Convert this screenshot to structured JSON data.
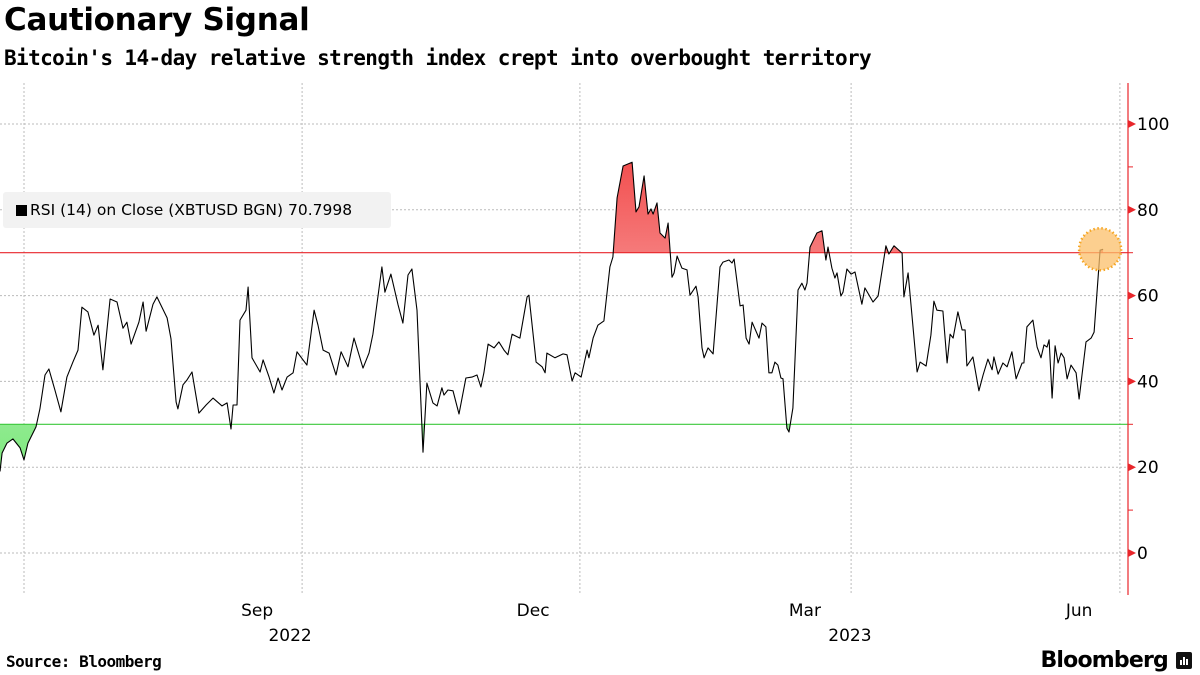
{
  "header": {
    "title": "Cautionary Signal",
    "subtitle": "Bitcoin's 14-day relative strength index crept into overbought territory"
  },
  "legend": {
    "label": "RSI (14)  on Close (XBTUSD BGN) 70.7998"
  },
  "footer": {
    "source": "Source: Bloomberg",
    "brand": "Bloomberg"
  },
  "colors": {
    "line": "#000000",
    "overbought": "#e8262b",
    "oversold": "#3cc83c",
    "axis": "#e8262b",
    "highlight": "#fbbf6a"
  },
  "chart_data": {
    "type": "line",
    "title": "Cautionary Signal",
    "xlabel": "",
    "ylabel": "RSI",
    "x_unit": "days since start of window (late Jun 2022)",
    "ylim": [
      -10,
      110
    ],
    "xlim": [
      0,
      376
    ],
    "yticks": [
      0,
      20,
      40,
      60,
      80,
      100
    ],
    "ytick_labels": [
      "0",
      "20",
      "40",
      "60",
      "80",
      "100"
    ],
    "x_gridlines": [
      8,
      100.7,
      193.3,
      283.7,
      373.3
    ],
    "xtick_labels": [
      {
        "label": "Sep",
        "x": 85.7
      },
      {
        "label": "Dec",
        "x": 177.7
      },
      {
        "label": "Mar",
        "x": 268.3
      },
      {
        "label": "Jun",
        "x": 359.7
      }
    ],
    "year_labels": [
      {
        "label": "2022",
        "x": 96.7
      },
      {
        "label": "2023",
        "x": 283.3
      }
    ],
    "overbought_level": 70,
    "oversold_level": 30,
    "last_value": 70.7998,
    "series": [
      {
        "name": "RSI (14) on Close (XBTUSD BGN)",
        "points": [
          [
            0,
            19
          ],
          [
            0.7,
            23.3
          ],
          [
            2.3,
            25.6
          ],
          [
            4.3,
            26.6
          ],
          [
            6.7,
            24.5
          ],
          [
            8,
            21.7
          ],
          [
            9.3,
            25.6
          ],
          [
            12,
            29.4
          ],
          [
            13.3,
            33.6
          ],
          [
            15,
            41.5
          ],
          [
            16.3,
            42.9
          ],
          [
            18.3,
            38
          ],
          [
            20.3,
            32.9
          ],
          [
            22.3,
            41
          ],
          [
            24.3,
            44.5
          ],
          [
            26,
            47.3
          ],
          [
            27.3,
            57.3
          ],
          [
            29.3,
            56.2
          ],
          [
            31.3,
            50.8
          ],
          [
            32.7,
            53.1
          ],
          [
            34.3,
            42.7
          ],
          [
            36.7,
            59.2
          ],
          [
            39,
            58.5
          ],
          [
            41,
            52.4
          ],
          [
            42.3,
            53.8
          ],
          [
            43.7,
            48.7
          ],
          [
            46.3,
            53.8
          ],
          [
            47.7,
            58.5
          ],
          [
            48.7,
            51.7
          ],
          [
            51,
            58
          ],
          [
            52.3,
            59.7
          ],
          [
            55.7,
            54.8
          ],
          [
            57,
            49.9
          ],
          [
            58.7,
            35.2
          ],
          [
            59.3,
            33.6
          ],
          [
            61,
            39.2
          ],
          [
            62.3,
            40.3
          ],
          [
            64,
            42.2
          ],
          [
            66.3,
            32.6
          ],
          [
            68.7,
            34.5
          ],
          [
            71,
            36.1
          ],
          [
            74,
            34.3
          ],
          [
            75.7,
            35
          ],
          [
            77,
            28.9
          ],
          [
            77.7,
            34.5
          ],
          [
            79,
            34.5
          ],
          [
            80,
            54.3
          ],
          [
            82,
            56.6
          ],
          [
            82.7,
            62
          ],
          [
            84,
            45.5
          ],
          [
            86.7,
            42.2
          ],
          [
            87.7,
            45
          ],
          [
            89.7,
            41
          ],
          [
            91.3,
            37.3
          ],
          [
            92.7,
            40.8
          ],
          [
            94,
            38
          ],
          [
            95.7,
            41
          ],
          [
            97.7,
            42
          ],
          [
            99,
            46.9
          ],
          [
            102.3,
            43.8
          ],
          [
            104.7,
            56.6
          ],
          [
            106,
            53.1
          ],
          [
            107.7,
            47.3
          ],
          [
            109.7,
            46.6
          ],
          [
            112,
            41.5
          ],
          [
            113.7,
            46.9
          ],
          [
            116,
            43.4
          ],
          [
            118,
            50.1
          ],
          [
            121,
            43.1
          ],
          [
            123,
            46.6
          ],
          [
            124.3,
            51
          ],
          [
            127.3,
            66.7
          ],
          [
            128.3,
            60.8
          ],
          [
            130.3,
            65
          ],
          [
            132.7,
            57.8
          ],
          [
            134.3,
            53.6
          ],
          [
            136,
            64.8
          ],
          [
            137.3,
            66.2
          ],
          [
            139,
            56.6
          ],
          [
            141,
            23.5
          ],
          [
            142.3,
            39.6
          ],
          [
            144.3,
            35
          ],
          [
            145.7,
            34.3
          ],
          [
            147.3,
            38.5
          ],
          [
            148,
            36.8
          ],
          [
            149.3,
            38
          ],
          [
            151,
            37.8
          ],
          [
            153,
            32.4
          ],
          [
            155.3,
            40.8
          ],
          [
            157.3,
            41
          ],
          [
            159,
            41.5
          ],
          [
            160.3,
            38.7
          ],
          [
            161.3,
            42
          ],
          [
            162.7,
            48.7
          ],
          [
            164.7,
            47.8
          ],
          [
            166.3,
            49.2
          ],
          [
            168,
            47.3
          ],
          [
            169.3,
            46.2
          ],
          [
            170.7,
            51
          ],
          [
            173.3,
            50.1
          ],
          [
            175.7,
            59.7
          ],
          [
            176.3,
            60.1
          ],
          [
            178.7,
            44.5
          ],
          [
            180.7,
            43.4
          ],
          [
            181.7,
            42
          ],
          [
            182.3,
            46.6
          ],
          [
            185,
            45.5
          ],
          [
            187.7,
            46.4
          ],
          [
            189,
            46.2
          ],
          [
            190.7,
            40.1
          ],
          [
            191.7,
            42
          ],
          [
            193.7,
            41
          ],
          [
            195.7,
            47.3
          ],
          [
            196.3,
            45.5
          ],
          [
            197.7,
            50.1
          ],
          [
            199.3,
            53.1
          ],
          [
            201.3,
            54.1
          ],
          [
            203.3,
            66.7
          ],
          [
            204.3,
            69
          ],
          [
            205.7,
            82.8
          ],
          [
            207.7,
            90.2
          ],
          [
            210.7,
            91.1
          ],
          [
            212,
            79.5
          ],
          [
            213,
            80.7
          ],
          [
            214.7,
            87.9
          ],
          [
            216,
            79
          ],
          [
            217,
            80.2
          ],
          [
            217.7,
            79
          ],
          [
            219,
            81.6
          ],
          [
            220,
            74.6
          ],
          [
            221.7,
            73.4
          ],
          [
            222.7,
            76.9
          ],
          [
            224,
            64.3
          ],
          [
            224.7,
            65.3
          ],
          [
            225.7,
            69.2
          ],
          [
            227.3,
            66.4
          ],
          [
            229,
            66
          ],
          [
            230,
            60.1
          ],
          [
            232,
            62.2
          ],
          [
            232.7,
            59.7
          ],
          [
            234,
            47.8
          ],
          [
            234.7,
            45.5
          ],
          [
            236,
            47.8
          ],
          [
            237.7,
            46.4
          ],
          [
            240,
            66.7
          ],
          [
            241,
            67.8
          ],
          [
            243,
            68.3
          ],
          [
            244,
            67.6
          ],
          [
            244.7,
            68.5
          ],
          [
            246.7,
            57.6
          ],
          [
            247.7,
            57.8
          ],
          [
            248.7,
            50.1
          ],
          [
            249.7,
            48.7
          ],
          [
            250.7,
            53.8
          ],
          [
            253,
            50.1
          ],
          [
            254,
            53.6
          ],
          [
            255.3,
            52.7
          ],
          [
            256.3,
            42
          ],
          [
            257.3,
            42
          ],
          [
            258.3,
            44.5
          ],
          [
            259.3,
            43.8
          ],
          [
            260.3,
            40.8
          ],
          [
            261,
            40.6
          ],
          [
            262.3,
            29.1
          ],
          [
            263,
            28.2
          ],
          [
            264.3,
            33.8
          ],
          [
            266,
            61.3
          ],
          [
            267.3,
            62.9
          ],
          [
            268.3,
            61.3
          ],
          [
            269,
            62.9
          ],
          [
            270,
            71.3
          ],
          [
            272.3,
            74.6
          ],
          [
            274,
            75.1
          ],
          [
            275.3,
            68.3
          ],
          [
            276,
            71.3
          ],
          [
            277.3,
            66.4
          ],
          [
            278.3,
            64.1
          ],
          [
            279,
            65.3
          ],
          [
            280.3,
            59.9
          ],
          [
            281,
            60.8
          ],
          [
            282.3,
            66.2
          ],
          [
            283.7,
            65
          ],
          [
            285,
            65.5
          ],
          [
            287.3,
            58
          ],
          [
            288.3,
            61.8
          ],
          [
            291,
            58.5
          ],
          [
            292.7,
            59.9
          ],
          [
            295.3,
            71.6
          ],
          [
            296.3,
            69.7
          ],
          [
            298,
            71.6
          ],
          [
            300.7,
            69.9
          ],
          [
            301.3,
            59.7
          ],
          [
            302.7,
            65.3
          ],
          [
            305.7,
            42.2
          ],
          [
            306.7,
            44.5
          ],
          [
            308.7,
            43.6
          ],
          [
            310.3,
            50.8
          ],
          [
            311.3,
            58.7
          ],
          [
            312.3,
            56.6
          ],
          [
            314.3,
            56.4
          ],
          [
            315.7,
            44.3
          ],
          [
            316.7,
            51
          ],
          [
            317.7,
            50.1
          ],
          [
            319.3,
            56.2
          ],
          [
            320.7,
            52
          ],
          [
            321.7,
            52
          ],
          [
            322.3,
            43.6
          ],
          [
            324.3,
            45.7
          ],
          [
            326.3,
            37.8
          ],
          [
            327.7,
            41.5
          ],
          [
            329.3,
            45.2
          ],
          [
            330.7,
            42.7
          ],
          [
            331.3,
            45.7
          ],
          [
            332.7,
            41.7
          ],
          [
            334.3,
            44.3
          ],
          [
            335.7,
            43.4
          ],
          [
            337.3,
            46.9
          ],
          [
            338.7,
            40.6
          ],
          [
            340.7,
            44.3
          ],
          [
            341.3,
            44.3
          ],
          [
            342.3,
            52.7
          ],
          [
            344.3,
            54.3
          ],
          [
            345.7,
            48
          ],
          [
            347,
            45.5
          ],
          [
            348,
            48.5
          ],
          [
            349,
            48
          ],
          [
            349.7,
            49.7
          ],
          [
            350.7,
            36.1
          ],
          [
            351.7,
            48.3
          ],
          [
            352.7,
            44.3
          ],
          [
            353.7,
            46.6
          ],
          [
            354.7,
            45.5
          ],
          [
            355.7,
            40.6
          ],
          [
            357,
            43.8
          ],
          [
            358.7,
            42
          ],
          [
            359.7,
            35.9
          ],
          [
            362,
            49.2
          ],
          [
            363.7,
            50.1
          ],
          [
            364.7,
            51.5
          ],
          [
            366.7,
            70.6
          ],
          [
            367.7,
            70.7998
          ]
        ]
      }
    ]
  }
}
